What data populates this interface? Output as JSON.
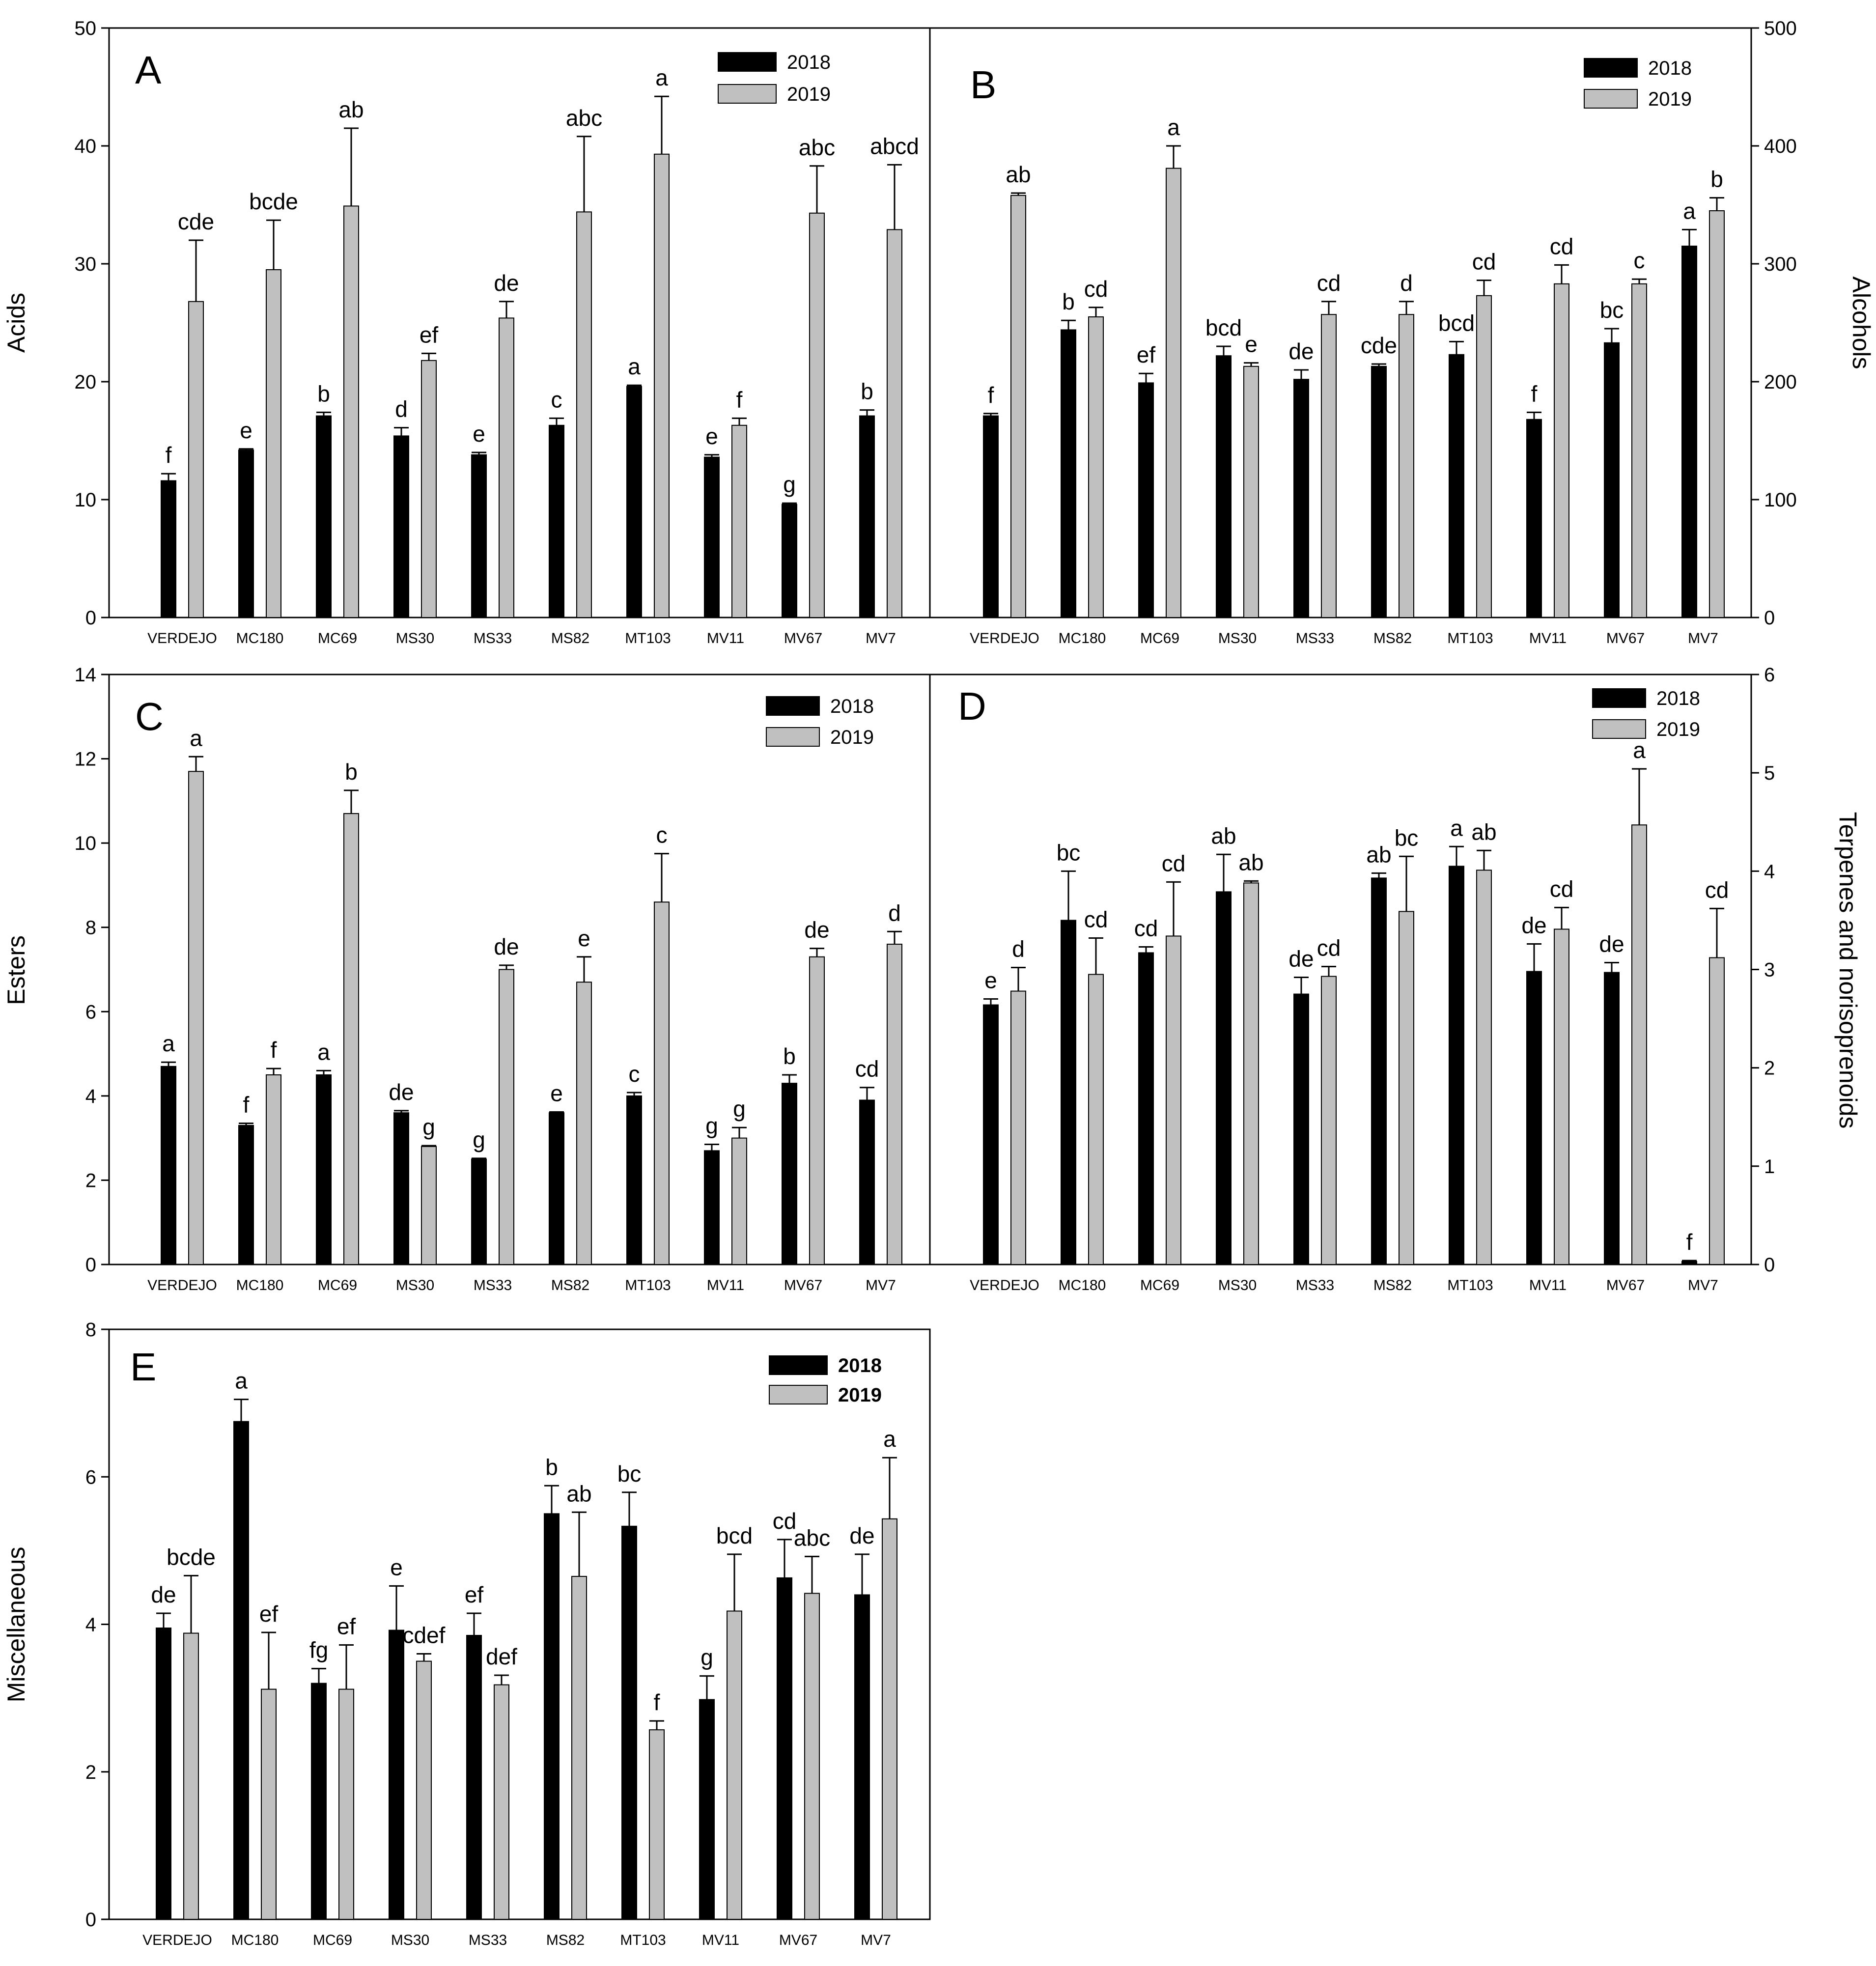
{
  "categories": [
    "VERDEJO",
    "MC180",
    "MC69",
    "MS30",
    "MS33",
    "MS82",
    "MT103",
    "MV11",
    "MV67",
    "MV7"
  ],
  "colors": {
    "series_2018": "#000000",
    "series_2019": "#c0c0c0",
    "axis": "#000000"
  },
  "chart_data": [
    {
      "type": "bar",
      "panel": "A",
      "ylabel": "Acids",
      "ylim": [
        0,
        50
      ],
      "yticks": [
        0,
        10,
        20,
        30,
        40,
        50
      ],
      "yaxis_side": "left",
      "legend": [
        "2018",
        "2019"
      ],
      "legend_bold": false,
      "series": [
        {
          "name": "2018",
          "values": [
            11.6,
            14.2,
            17.1,
            15.4,
            13.8,
            16.3,
            19.6,
            13.6,
            9.6,
            17.1
          ],
          "errors": [
            0.6,
            0.1,
            0.3,
            0.7,
            0.2,
            0.6,
            0.1,
            0.2,
            0.1,
            0.5
          ],
          "labels": [
            "f",
            "e",
            "b",
            "d",
            "e",
            "c",
            "a",
            "e",
            "g",
            "b"
          ]
        },
        {
          "name": "2019",
          "values": [
            26.8,
            29.5,
            34.9,
            21.8,
            25.4,
            34.4,
            39.3,
            16.3,
            34.3,
            32.9
          ],
          "errors": [
            5.2,
            4.2,
            6.6,
            0.6,
            1.4,
            6.4,
            4.9,
            0.6,
            4.0,
            5.5
          ],
          "labels": [
            "cde",
            "bcde",
            "ab",
            "ef",
            "de",
            "abc",
            "a",
            "f",
            "abc",
            "abcd"
          ]
        }
      ]
    },
    {
      "type": "bar",
      "panel": "B",
      "ylabel": "Alcohols",
      "ylim": [
        0,
        500
      ],
      "yticks": [
        0,
        100,
        200,
        300,
        400,
        500
      ],
      "yaxis_side": "right",
      "legend": [
        "2018",
        "2019"
      ],
      "legend_bold": false,
      "series": [
        {
          "name": "2018",
          "values": [
            171,
            244,
            199,
            222,
            202,
            213,
            223,
            168,
            233,
            315
          ],
          "errors": [
            2,
            8,
            8,
            8,
            8,
            2,
            11,
            6,
            12,
            14
          ],
          "labels": [
            "f",
            "b",
            "ef",
            "bcd",
            "de",
            "cde",
            "bcd",
            "f",
            "bc",
            "a"
          ]
        },
        {
          "name": "2019",
          "values": [
            358,
            255,
            381,
            213,
            257,
            257,
            273,
            283,
            283,
            345
          ],
          "errors": [
            2,
            8,
            19,
            3,
            11,
            11,
            13,
            16,
            4,
            11
          ],
          "labels": [
            "ab",
            "cd",
            "a",
            "e",
            "cd",
            "d",
            "cd",
            "cd",
            "c",
            "b"
          ]
        }
      ]
    },
    {
      "type": "bar",
      "panel": "C",
      "ylabel": "Esters",
      "ylim": [
        0,
        14
      ],
      "yticks": [
        0,
        2,
        4,
        6,
        8,
        10,
        12,
        14
      ],
      "yaxis_side": "left",
      "legend": [
        "2018",
        "2019"
      ],
      "legend_bold": false,
      "series": [
        {
          "name": "2018",
          "values": [
            4.7,
            3.3,
            4.5,
            3.6,
            2.5,
            3.6,
            4.0,
            2.7,
            4.3,
            3.9
          ],
          "errors": [
            0.1,
            0.05,
            0.1,
            0.05,
            0.02,
            0.02,
            0.08,
            0.15,
            0.2,
            0.3
          ],
          "labels": [
            "a",
            "f",
            "a",
            "de",
            "g",
            "e",
            "c",
            "g",
            "b",
            "cd"
          ]
        },
        {
          "name": "2019",
          "values": [
            11.7,
            4.5,
            10.7,
            2.8,
            7.0,
            6.7,
            8.6,
            3.0,
            7.3,
            7.6
          ],
          "errors": [
            0.35,
            0.15,
            0.55,
            0.02,
            0.1,
            0.6,
            1.15,
            0.25,
            0.2,
            0.3
          ],
          "labels": [
            "a",
            "f",
            "b",
            "g",
            "de",
            "e",
            "c",
            "g",
            "de",
            "d"
          ]
        }
      ]
    },
    {
      "type": "bar",
      "panel": "D",
      "ylabel": "Terpenes and norisoprenoids",
      "ylim": [
        0,
        6
      ],
      "yticks": [
        0,
        1,
        2,
        3,
        4,
        5,
        6
      ],
      "yaxis_side": "right",
      "legend": [
        "2018",
        "2019"
      ],
      "legend_bold": false,
      "series": [
        {
          "name": "2018",
          "values": [
            2.64,
            3.5,
            3.17,
            3.79,
            2.75,
            3.93,
            4.05,
            2.98,
            2.97,
            0.03
          ],
          "errors": [
            0.06,
            0.5,
            0.06,
            0.38,
            0.17,
            0.05,
            0.2,
            0.28,
            0.1,
            0.01
          ],
          "labels": [
            "e",
            "bc",
            "cd",
            "ab",
            "de",
            "ab",
            "a",
            "de",
            "de",
            "f"
          ]
        },
        {
          "name": "2019",
          "values": [
            2.78,
            2.95,
            3.34,
            3.88,
            2.93,
            3.59,
            4.01,
            3.41,
            4.47,
            3.12
          ],
          "errors": [
            0.24,
            0.37,
            0.55,
            0.02,
            0.1,
            0.56,
            0.2,
            0.22,
            0.57,
            0.5
          ],
          "labels": [
            "d",
            "cd",
            "cd",
            "ab",
            "cd",
            "bc",
            "ab",
            "cd",
            "a",
            "cd"
          ]
        }
      ]
    },
    {
      "type": "bar",
      "panel": "E",
      "ylabel": "Miscellaneous",
      "ylim": [
        0,
        8
      ],
      "yticks": [
        0,
        2,
        4,
        6,
        8
      ],
      "yaxis_side": "left",
      "legend": [
        "2018",
        "2019"
      ],
      "legend_bold": true,
      "series": [
        {
          "name": "2018",
          "values": [
            3.95,
            6.75,
            3.2,
            3.92,
            3.85,
            5.5,
            5.33,
            2.98,
            4.63,
            4.4
          ],
          "errors": [
            0.2,
            0.3,
            0.2,
            0.6,
            0.3,
            0.38,
            0.46,
            0.32,
            0.52,
            0.55
          ],
          "labels": [
            "de",
            "a",
            "fg",
            "e",
            "ef",
            "b",
            "bc",
            "g",
            "cd",
            "de"
          ]
        },
        {
          "name": "2019",
          "values": [
            3.88,
            3.12,
            3.12,
            3.5,
            3.18,
            4.65,
            2.57,
            4.18,
            4.42,
            5.43
          ],
          "errors": [
            0.78,
            0.77,
            0.6,
            0.1,
            0.13,
            0.87,
            0.12,
            0.77,
            0.5,
            0.83
          ],
          "labels": [
            "bcde",
            "ef",
            "ef",
            "cdef",
            "def",
            "ab",
            "f",
            "bcd",
            "abc",
            "a"
          ]
        }
      ]
    }
  ]
}
